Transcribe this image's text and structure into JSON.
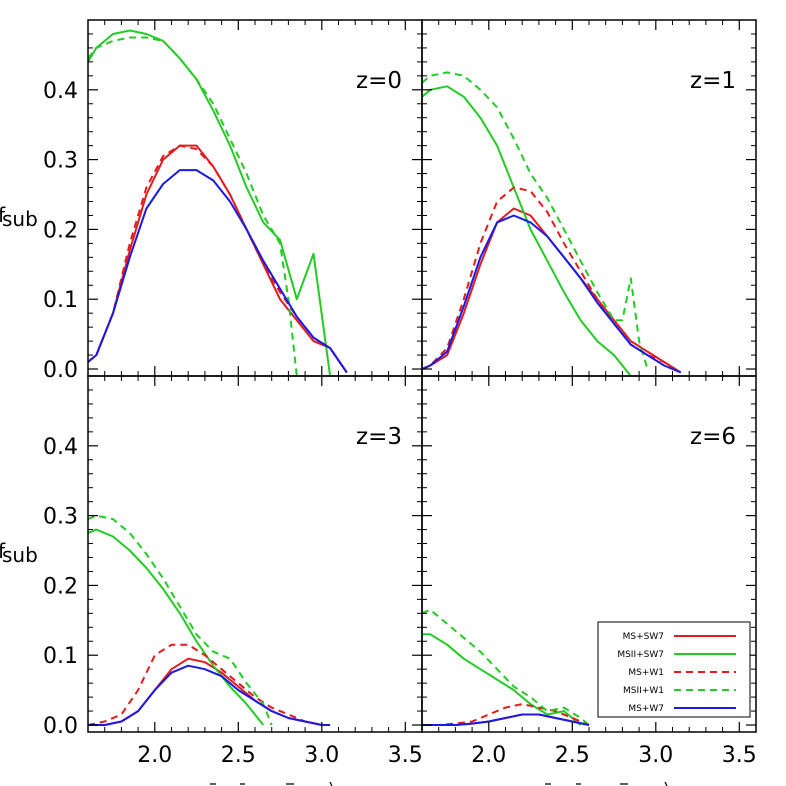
{
  "chart_data": {
    "type": "line",
    "ylabel": "f_sub",
    "xticks": [
      "2.0",
      "2.5",
      "3.0",
      "3.5"
    ],
    "yticks": [
      "0.0",
      "0.1",
      "0.2",
      "0.3",
      "0.4"
    ],
    "xlim": [
      1.6,
      3.6
    ],
    "ylim": [
      -0.01,
      0.5
    ],
    "legend": {
      "placement": "bottom-right of z=6 panel",
      "entries": [
        {
          "name": "MS+SW7",
          "color": "#e41a1c",
          "style": "solid"
        },
        {
          "name": "MSII+SW7",
          "color": "#22cc22",
          "style": "solid"
        },
        {
          "name": "MS+W1",
          "color": "#e41a1c",
          "style": "dashed"
        },
        {
          "name": "MSII+W1",
          "color": "#22cc22",
          "style": "dashed"
        },
        {
          "name": "MS+W7",
          "color": "#1a1ae6",
          "style": "solid"
        }
      ]
    },
    "panels": [
      {
        "label": "z=0",
        "series": [
          {
            "name": "MS+SW7",
            "x": [
              1.6,
              1.65,
              1.75,
              1.85,
              1.95,
              2.05,
              2.15,
              2.25,
              2.35,
              2.45,
              2.55,
              2.65,
              2.75,
              2.85,
              2.95,
              3.05,
              3.15
            ],
            "y": [
              0.01,
              0.02,
              0.08,
              0.17,
              0.25,
              0.3,
              0.32,
              0.32,
              0.29,
              0.25,
              0.2,
              0.15,
              0.1,
              0.07,
              0.04,
              0.03,
              -0.005
            ]
          },
          {
            "name": "MSII+SW7",
            "x": [
              1.6,
              1.65,
              1.75,
              1.85,
              1.95,
              2.05,
              2.15,
              2.25,
              2.35,
              2.45,
              2.55,
              2.65,
              2.75,
              2.85,
              2.95,
              3.05
            ],
            "y": [
              0.44,
              0.46,
              0.48,
              0.485,
              0.48,
              0.47,
              0.445,
              0.415,
              0.37,
              0.32,
              0.26,
              0.21,
              0.185,
              0.1,
              0.165,
              -0.01
            ]
          },
          {
            "name": "MS+W1",
            "x": [
              1.6,
              1.65,
              1.75,
              1.85,
              1.95,
              2.05,
              2.15,
              2.25,
              2.35,
              2.45,
              2.55,
              2.65,
              2.75,
              2.85,
              2.95,
              3.05,
              3.15
            ],
            "y": [
              0.01,
              0.02,
              0.08,
              0.18,
              0.26,
              0.305,
              0.32,
              0.315,
              0.29,
              0.25,
              0.2,
              0.15,
              0.11,
              0.075,
              0.045,
              0.03,
              -0.005
            ]
          },
          {
            "name": "MSII+W1",
            "x": [
              1.6,
              1.65,
              1.75,
              1.85,
              1.95,
              2.05,
              2.15,
              2.25,
              2.35,
              2.45,
              2.55,
              2.65,
              2.75,
              2.8,
              2.85
            ],
            "y": [
              0.445,
              0.46,
              0.47,
              0.475,
              0.475,
              0.47,
              0.445,
              0.415,
              0.38,
              0.33,
              0.28,
              0.22,
              0.18,
              0.1,
              -0.01
            ]
          },
          {
            "name": "MS+W7",
            "x": [
              1.6,
              1.65,
              1.75,
              1.85,
              1.95,
              2.05,
              2.15,
              2.25,
              2.35,
              2.45,
              2.55,
              2.65,
              2.75,
              2.85,
              2.95,
              3.05,
              3.15
            ],
            "y": [
              0.01,
              0.02,
              0.08,
              0.16,
              0.23,
              0.265,
              0.285,
              0.285,
              0.27,
              0.24,
              0.2,
              0.155,
              0.115,
              0.075,
              0.045,
              0.03,
              -0.005
            ]
          }
        ]
      },
      {
        "label": "z=1",
        "series": [
          {
            "name": "MS+SW7",
            "x": [
              1.6,
              1.65,
              1.75,
              1.85,
              1.95,
              2.05,
              2.15,
              2.25,
              2.35,
              2.45,
              2.55,
              2.65,
              2.75,
              2.85,
              2.95,
              3.05,
              3.15
            ],
            "y": [
              0.0,
              0.005,
              0.02,
              0.08,
              0.15,
              0.21,
              0.23,
              0.22,
              0.19,
              0.16,
              0.13,
              0.1,
              0.07,
              0.04,
              0.025,
              0.01,
              -0.005
            ]
          },
          {
            "name": "MSII+SW7",
            "x": [
              1.6,
              1.65,
              1.75,
              1.85,
              1.95,
              2.05,
              2.15,
              2.25,
              2.35,
              2.45,
              2.55,
              2.65,
              2.75,
              2.85
            ],
            "y": [
              0.39,
              0.4,
              0.405,
              0.39,
              0.36,
              0.32,
              0.26,
              0.2,
              0.155,
              0.11,
              0.07,
              0.04,
              0.02,
              -0.01
            ]
          },
          {
            "name": "MS+W1",
            "x": [
              1.6,
              1.65,
              1.75,
              1.85,
              1.95,
              2.05,
              2.15,
              2.25,
              2.35,
              2.45,
              2.55,
              2.65,
              2.75,
              2.85,
              2.95,
              3.05,
              3.15
            ],
            "y": [
              0.0,
              0.005,
              0.03,
              0.1,
              0.18,
              0.24,
              0.26,
              0.255,
              0.225,
              0.18,
              0.14,
              0.1,
              0.065,
              0.035,
              0.02,
              0.01,
              -0.005
            ]
          },
          {
            "name": "MSII+W1",
            "x": [
              1.6,
              1.65,
              1.75,
              1.85,
              1.95,
              2.05,
              2.15,
              2.25,
              2.35,
              2.45,
              2.55,
              2.65,
              2.75,
              2.8,
              2.85,
              2.9,
              2.95
            ],
            "y": [
              0.41,
              0.42,
              0.425,
              0.42,
              0.4,
              0.375,
              0.33,
              0.28,
              0.245,
              0.2,
              0.155,
              0.11,
              0.07,
              0.07,
              0.13,
              0.04,
              0.0
            ]
          },
          {
            "name": "MS+W7",
            "x": [
              1.6,
              1.65,
              1.75,
              1.85,
              1.95,
              2.05,
              2.15,
              2.25,
              2.35,
              2.45,
              2.55,
              2.65,
              2.75,
              2.85,
              2.95,
              3.05,
              3.15
            ],
            "y": [
              0.0,
              0.005,
              0.025,
              0.09,
              0.16,
              0.21,
              0.22,
              0.21,
              0.19,
              0.16,
              0.13,
              0.095,
              0.065,
              0.035,
              0.02,
              0.005,
              -0.005
            ]
          }
        ]
      },
      {
        "label": "z=3",
        "series": [
          {
            "name": "MS+SW7",
            "x": [
              1.6,
              1.7,
              1.8,
              1.9,
              2.0,
              2.1,
              2.2,
              2.3,
              2.4,
              2.5,
              2.6,
              2.7,
              2.8,
              2.9,
              3.0,
              3.05
            ],
            "y": [
              0.0,
              0.0,
              0.005,
              0.02,
              0.05,
              0.08,
              0.095,
              0.09,
              0.075,
              0.055,
              0.035,
              0.02,
              0.01,
              0.005,
              0.0,
              0.0
            ]
          },
          {
            "name": "MSII+SW7",
            "x": [
              1.6,
              1.65,
              1.75,
              1.85,
              1.95,
              2.05,
              2.15,
              2.25,
              2.35,
              2.45,
              2.55,
              2.65
            ],
            "y": [
              0.275,
              0.28,
              0.27,
              0.25,
              0.225,
              0.195,
              0.16,
              0.12,
              0.085,
              0.055,
              0.03,
              0.0
            ]
          },
          {
            "name": "MS+W1",
            "x": [
              1.6,
              1.7,
              1.8,
              1.9,
              2.0,
              2.1,
              2.2,
              2.3,
              2.4,
              2.5,
              2.6,
              2.7,
              2.8,
              2.9,
              3.0
            ],
            "y": [
              0.0,
              0.005,
              0.015,
              0.05,
              0.1,
              0.115,
              0.115,
              0.1,
              0.08,
              0.06,
              0.04,
              0.025,
              0.015,
              0.005,
              0.0
            ]
          },
          {
            "name": "MSII+W1",
            "x": [
              1.6,
              1.65,
              1.75,
              1.85,
              1.95,
              2.05,
              2.15,
              2.25,
              2.35,
              2.45,
              2.55,
              2.65,
              2.7
            ],
            "y": [
              0.295,
              0.3,
              0.295,
              0.275,
              0.245,
              0.21,
              0.17,
              0.13,
              0.105,
              0.095,
              0.06,
              0.03,
              0.0
            ]
          },
          {
            "name": "MS+W7",
            "x": [
              1.6,
              1.7,
              1.8,
              1.9,
              2.0,
              2.1,
              2.2,
              2.3,
              2.4,
              2.5,
              2.6,
              2.7,
              2.8,
              2.9,
              3.0,
              3.05
            ],
            "y": [
              0.0,
              0.0,
              0.005,
              0.02,
              0.05,
              0.075,
              0.085,
              0.08,
              0.07,
              0.05,
              0.035,
              0.02,
              0.01,
              0.005,
              0.0,
              0.0
            ]
          }
        ]
      },
      {
        "label": "z=6",
        "series": [
          {
            "name": "MS+SW7",
            "x": [
              1.6,
              1.7,
              1.8,
              1.9,
              2.0,
              2.1,
              2.2,
              2.3,
              2.4,
              2.5,
              2.6
            ],
            "y": [
              0.0,
              0.0,
              0.0,
              0.002,
              0.005,
              0.01,
              0.015,
              0.015,
              0.01,
              0.005,
              0.0
            ]
          },
          {
            "name": "MSII+SW7",
            "x": [
              1.6,
              1.65,
              1.75,
              1.85,
              1.95,
              2.05,
              2.15,
              2.25,
              2.35,
              2.45,
              2.55
            ],
            "y": [
              0.13,
              0.13,
              0.115,
              0.095,
              0.08,
              0.065,
              0.05,
              0.03,
              0.015,
              0.02,
              0.0
            ]
          },
          {
            "name": "MS+W1",
            "x": [
              1.6,
              1.7,
              1.8,
              1.9,
              2.0,
              2.1,
              2.2,
              2.3,
              2.4,
              2.5,
              2.6
            ],
            "y": [
              0.0,
              0.0,
              0.002,
              0.005,
              0.015,
              0.025,
              0.03,
              0.025,
              0.02,
              0.01,
              0.0
            ]
          },
          {
            "name": "MSII+W1",
            "x": [
              1.6,
              1.65,
              1.75,
              1.85,
              1.95,
              2.05,
              2.15,
              2.25,
              2.35,
              2.45,
              2.55,
              2.6
            ],
            "y": [
              0.16,
              0.165,
              0.145,
              0.125,
              0.105,
              0.08,
              0.055,
              0.04,
              0.02,
              0.025,
              0.01,
              0.0
            ]
          },
          {
            "name": "MS+W7",
            "x": [
              1.6,
              1.7,
              1.8,
              1.9,
              2.0,
              2.1,
              2.2,
              2.3,
              2.4,
              2.5,
              2.6
            ],
            "y": [
              0.0,
              0.0,
              0.0,
              0.002,
              0.005,
              0.01,
              0.015,
              0.015,
              0.01,
              0.005,
              0.0
            ]
          }
        ]
      }
    ]
  }
}
